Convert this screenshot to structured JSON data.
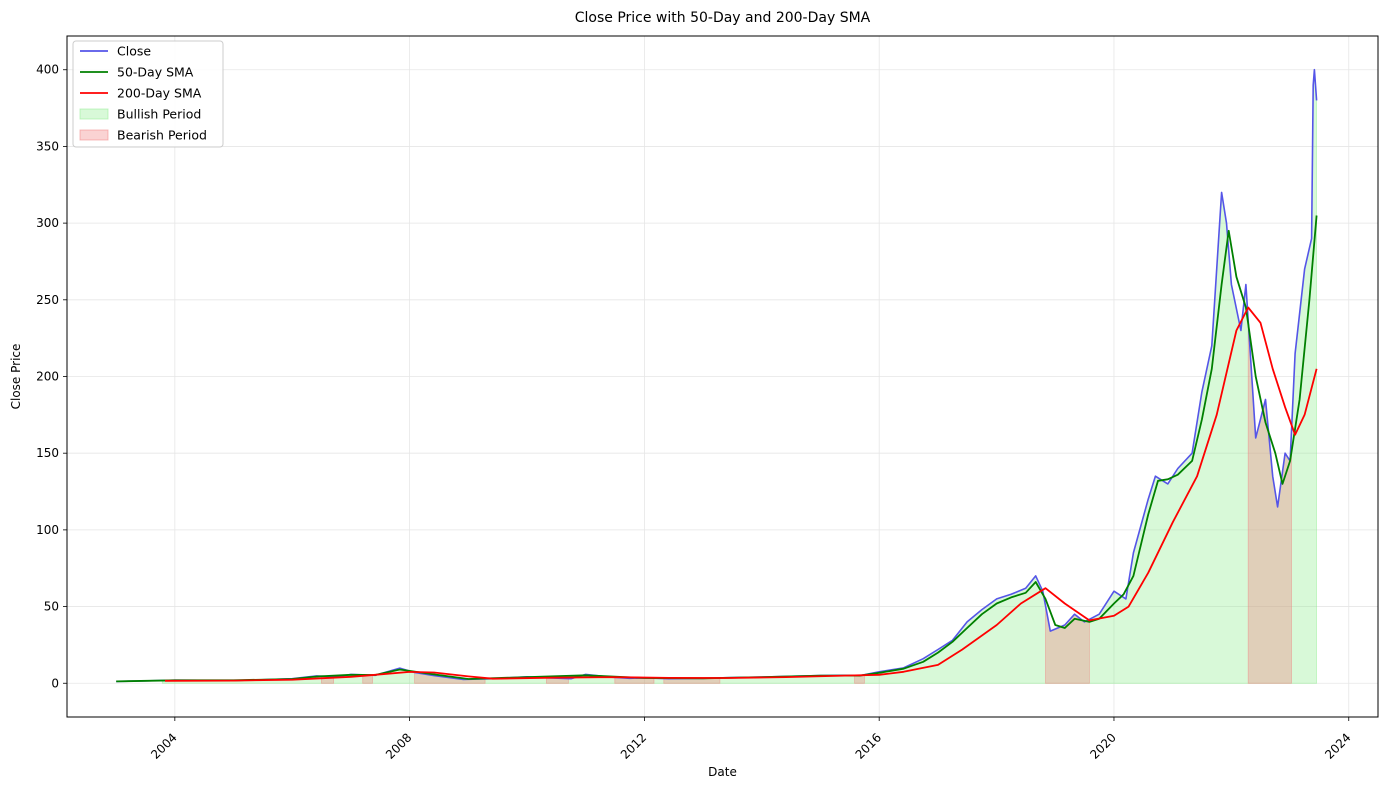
{
  "chart_data": {
    "type": "line",
    "title": "Close Price with 50-Day and 200-Day SMA",
    "xlabel": "Date",
    "ylabel": "Close Price",
    "xlim": [
      "2002-03-01",
      "2024-07-01"
    ],
    "ylim": [
      -22,
      422
    ],
    "x_ticks": [
      "2004-01-01",
      "2008-01-01",
      "2012-01-01",
      "2016-01-01",
      "2020-01-01",
      "2024-01-01"
    ],
    "x_tick_labels": [
      "2004",
      "2008",
      "2012",
      "2016",
      "2020",
      "2024"
    ],
    "y_ticks": [
      0,
      50,
      100,
      150,
      200,
      250,
      300,
      350,
      400
    ],
    "grid": true,
    "legend_position": "top-left",
    "colors": {
      "close": "#5555e8",
      "sma50": "#008000",
      "sma200": "#ff0000",
      "bullish": "#90ee90",
      "bearish": "#f08080"
    },
    "series": [
      {
        "name": "Close",
        "points": [
          [
            "2003-01-01",
            1.2
          ],
          [
            "2003-06-01",
            1.5
          ],
          [
            "2004-01-01",
            2.0
          ],
          [
            "2004-06-01",
            1.9
          ],
          [
            "2005-01-01",
            1.8
          ],
          [
            "2005-06-01",
            2.2
          ],
          [
            "2006-01-01",
            3.0
          ],
          [
            "2006-06-01",
            4.8
          ],
          [
            "2006-10-01",
            4.2
          ],
          [
            "2007-01-01",
            5.8
          ],
          [
            "2007-06-01",
            5.2
          ],
          [
            "2007-11-01",
            9.8
          ],
          [
            "2008-02-01",
            7.0
          ],
          [
            "2008-06-01",
            5.0
          ],
          [
            "2008-12-01",
            2.5
          ],
          [
            "2009-06-01",
            3.0
          ],
          [
            "2010-01-01",
            4.2
          ],
          [
            "2010-06-01",
            3.5
          ],
          [
            "2010-10-01",
            3.0
          ],
          [
            "2011-01-01",
            5.8
          ],
          [
            "2011-06-01",
            4.0
          ],
          [
            "2011-10-01",
            3.2
          ],
          [
            "2012-01-01",
            3.5
          ],
          [
            "2012-06-01",
            3.0
          ],
          [
            "2013-01-01",
            3.2
          ],
          [
            "2013-06-01",
            3.6
          ],
          [
            "2014-01-01",
            4.0
          ],
          [
            "2014-06-01",
            4.5
          ],
          [
            "2015-01-01",
            5.0
          ],
          [
            "2015-06-01",
            5.2
          ],
          [
            "2015-09-01",
            5.0
          ],
          [
            "2016-01-01",
            7.5
          ],
          [
            "2016-06-01",
            10.0
          ],
          [
            "2016-10-01",
            16.0
          ],
          [
            "2017-01-01",
            22.0
          ],
          [
            "2017-04-01",
            28.0
          ],
          [
            "2017-07-01",
            40.0
          ],
          [
            "2017-10-01",
            48.0
          ],
          [
            "2018-01-01",
            55.0
          ],
          [
            "2018-04-01",
            58.0
          ],
          [
            "2018-07-01",
            62.0
          ],
          [
            "2018-09-01",
            70.0
          ],
          [
            "2018-10-15",
            60.0
          ],
          [
            "2018-12-01",
            34.0
          ],
          [
            "2019-03-01",
            38.0
          ],
          [
            "2019-05-01",
            45.0
          ],
          [
            "2019-07-01",
            40.0
          ],
          [
            "2019-10-01",
            45.0
          ],
          [
            "2020-01-01",
            60.0
          ],
          [
            "2020-03-15",
            55.0
          ],
          [
            "2020-05-01",
            85.0
          ],
          [
            "2020-08-01",
            120.0
          ],
          [
            "2020-09-15",
            135.0
          ],
          [
            "2020-12-01",
            130.0
          ],
          [
            "2021-02-01",
            140.0
          ],
          [
            "2021-05-01",
            150.0
          ],
          [
            "2021-07-01",
            190.0
          ],
          [
            "2021-09-01",
            220.0
          ],
          [
            "2021-11-01",
            320.0
          ],
          [
            "2021-12-01",
            300.0
          ],
          [
            "2022-01-01",
            260.0
          ],
          [
            "2022-03-01",
            230.0
          ],
          [
            "2022-04-01",
            260.0
          ],
          [
            "2022-06-01",
            160.0
          ],
          [
            "2022-08-01",
            185.0
          ],
          [
            "2022-09-15",
            135.0
          ],
          [
            "2022-10-15",
            115.0
          ],
          [
            "2022-12-01",
            150.0
          ],
          [
            "2023-01-01",
            145.0
          ],
          [
            "2023-02-01",
            215.0
          ],
          [
            "2023-04-01",
            270.0
          ],
          [
            "2023-05-15",
            290.0
          ],
          [
            "2023-05-25",
            390.0
          ],
          [
            "2023-06-01",
            400.0
          ],
          [
            "2023-06-15",
            380.0
          ]
        ]
      },
      {
        "name": "50-Day SMA",
        "points": [
          [
            "2003-01-01",
            1.2
          ],
          [
            "2004-01-01",
            1.9
          ],
          [
            "2005-01-01",
            1.9
          ],
          [
            "2006-01-01",
            2.8
          ],
          [
            "2006-06-01",
            4.4
          ],
          [
            "2007-01-01",
            5.5
          ],
          [
            "2007-06-01",
            5.4
          ],
          [
            "2007-11-01",
            9.0
          ],
          [
            "2008-06-01",
            5.8
          ],
          [
            "2009-01-01",
            2.8
          ],
          [
            "2010-01-01",
            4.0
          ],
          [
            "2011-01-01",
            5.2
          ],
          [
            "2012-01-01",
            3.4
          ],
          [
            "2013-01-01",
            3.2
          ],
          [
            "2014-01-01",
            4.0
          ],
          [
            "2015-01-01",
            5.0
          ],
          [
            "2015-09-01",
            5.0
          ],
          [
            "2016-01-01",
            6.8
          ],
          [
            "2016-06-01",
            9.5
          ],
          [
            "2016-10-01",
            14.0
          ],
          [
            "2017-01-01",
            20.0
          ],
          [
            "2017-04-01",
            27.0
          ],
          [
            "2017-07-01",
            36.0
          ],
          [
            "2017-10-01",
            45.0
          ],
          [
            "2018-01-01",
            52.0
          ],
          [
            "2018-04-01",
            56.0
          ],
          [
            "2018-07-01",
            59.0
          ],
          [
            "2018-09-01",
            66.0
          ],
          [
            "2018-11-01",
            55.0
          ],
          [
            "2019-01-01",
            38.0
          ],
          [
            "2019-03-01",
            36.0
          ],
          [
            "2019-05-01",
            42.0
          ],
          [
            "2019-08-01",
            40.0
          ],
          [
            "2019-10-01",
            42.0
          ],
          [
            "2020-01-01",
            52.0
          ],
          [
            "2020-03-01",
            58.0
          ],
          [
            "2020-05-01",
            70.0
          ],
          [
            "2020-08-01",
            110.0
          ],
          [
            "2020-10-01",
            132.0
          ],
          [
            "2020-12-01",
            133.0
          ],
          [
            "2021-02-01",
            136.0
          ],
          [
            "2021-05-01",
            145.0
          ],
          [
            "2021-07-01",
            172.0
          ],
          [
            "2021-09-01",
            205.0
          ],
          [
            "2021-11-01",
            260.0
          ],
          [
            "2021-12-15",
            295.0
          ],
          [
            "2022-02-01",
            265.0
          ],
          [
            "2022-04-01",
            245.0
          ],
          [
            "2022-06-01",
            200.0
          ],
          [
            "2022-08-01",
            170.0
          ],
          [
            "2022-10-01",
            150.0
          ],
          [
            "2022-11-15",
            130.0
          ],
          [
            "2023-01-01",
            145.0
          ],
          [
            "2023-03-01",
            185.0
          ],
          [
            "2023-05-01",
            250.0
          ],
          [
            "2023-06-15",
            305.0
          ]
        ]
      },
      {
        "name": "200-Day SMA",
        "points": [
          [
            "2003-11-01",
            1.6
          ],
          [
            "2005-01-01",
            1.7
          ],
          [
            "2006-01-01",
            2.3
          ],
          [
            "2007-01-01",
            4.2
          ],
          [
            "2007-06-01",
            5.5
          ],
          [
            "2008-01-01",
            7.4
          ],
          [
            "2008-06-01",
            7.0
          ],
          [
            "2009-01-01",
            4.5
          ],
          [
            "2009-06-01",
            3.0
          ],
          [
            "2010-06-01",
            3.6
          ],
          [
            "2011-06-01",
            4.0
          ],
          [
            "2012-06-01",
            3.5
          ],
          [
            "2013-06-01",
            3.4
          ],
          [
            "2014-06-01",
            4.0
          ],
          [
            "2015-06-01",
            5.0
          ],
          [
            "2016-01-01",
            5.5
          ],
          [
            "2016-06-01",
            7.5
          ],
          [
            "2017-01-01",
            12.0
          ],
          [
            "2017-06-01",
            22.0
          ],
          [
            "2018-01-01",
            38.0
          ],
          [
            "2018-06-01",
            52.0
          ],
          [
            "2018-11-01",
            62.0
          ],
          [
            "2019-03-01",
            52.0
          ],
          [
            "2019-08-01",
            41.0
          ],
          [
            "2020-01-01",
            44.0
          ],
          [
            "2020-04-01",
            50.0
          ],
          [
            "2020-08-01",
            72.0
          ],
          [
            "2021-01-01",
            105.0
          ],
          [
            "2021-06-01",
            135.0
          ],
          [
            "2021-10-01",
            175.0
          ],
          [
            "2022-02-01",
            230.0
          ],
          [
            "2022-04-15",
            245.0
          ],
          [
            "2022-07-01",
            235.0
          ],
          [
            "2022-09-15",
            205.0
          ],
          [
            "2022-12-01",
            180.0
          ],
          [
            "2023-02-01",
            162.0
          ],
          [
            "2023-04-01",
            175.0
          ],
          [
            "2023-06-15",
            205.0
          ]
        ]
      }
    ],
    "shaded_regions": [
      {
        "name": "Bullish Period",
        "color": "#90ee90",
        "series": "Close",
        "start": "2003-10-15",
        "end": "2023-06-15"
      },
      {
        "name": "Bearish Period",
        "color": "#f08080",
        "series": "Close",
        "ranges": [
          [
            "2006-07-01",
            "2006-09-15"
          ],
          [
            "2007-03-15",
            "2007-05-15"
          ],
          [
            "2008-02-01",
            "2009-04-15"
          ],
          [
            "2010-05-01",
            "2010-09-15"
          ],
          [
            "2011-07-01",
            "2012-03-01"
          ],
          [
            "2012-05-01",
            "2013-04-15"
          ],
          [
            "2015-08-01",
            "2015-10-01"
          ],
          [
            "2018-11-01",
            "2019-08-01"
          ],
          [
            "2022-04-15",
            "2023-01-10"
          ]
        ]
      }
    ],
    "legend": [
      {
        "label": "Close",
        "kind": "line",
        "color": "#5555e8"
      },
      {
        "label": "50-Day SMA",
        "kind": "line",
        "color": "#008000"
      },
      {
        "label": "200-Day SMA",
        "kind": "line",
        "color": "#ff0000"
      },
      {
        "label": "Bullish Period",
        "kind": "patch",
        "color": "#90ee90"
      },
      {
        "label": "Bearish Period",
        "kind": "patch",
        "color": "#f08080"
      }
    ]
  }
}
